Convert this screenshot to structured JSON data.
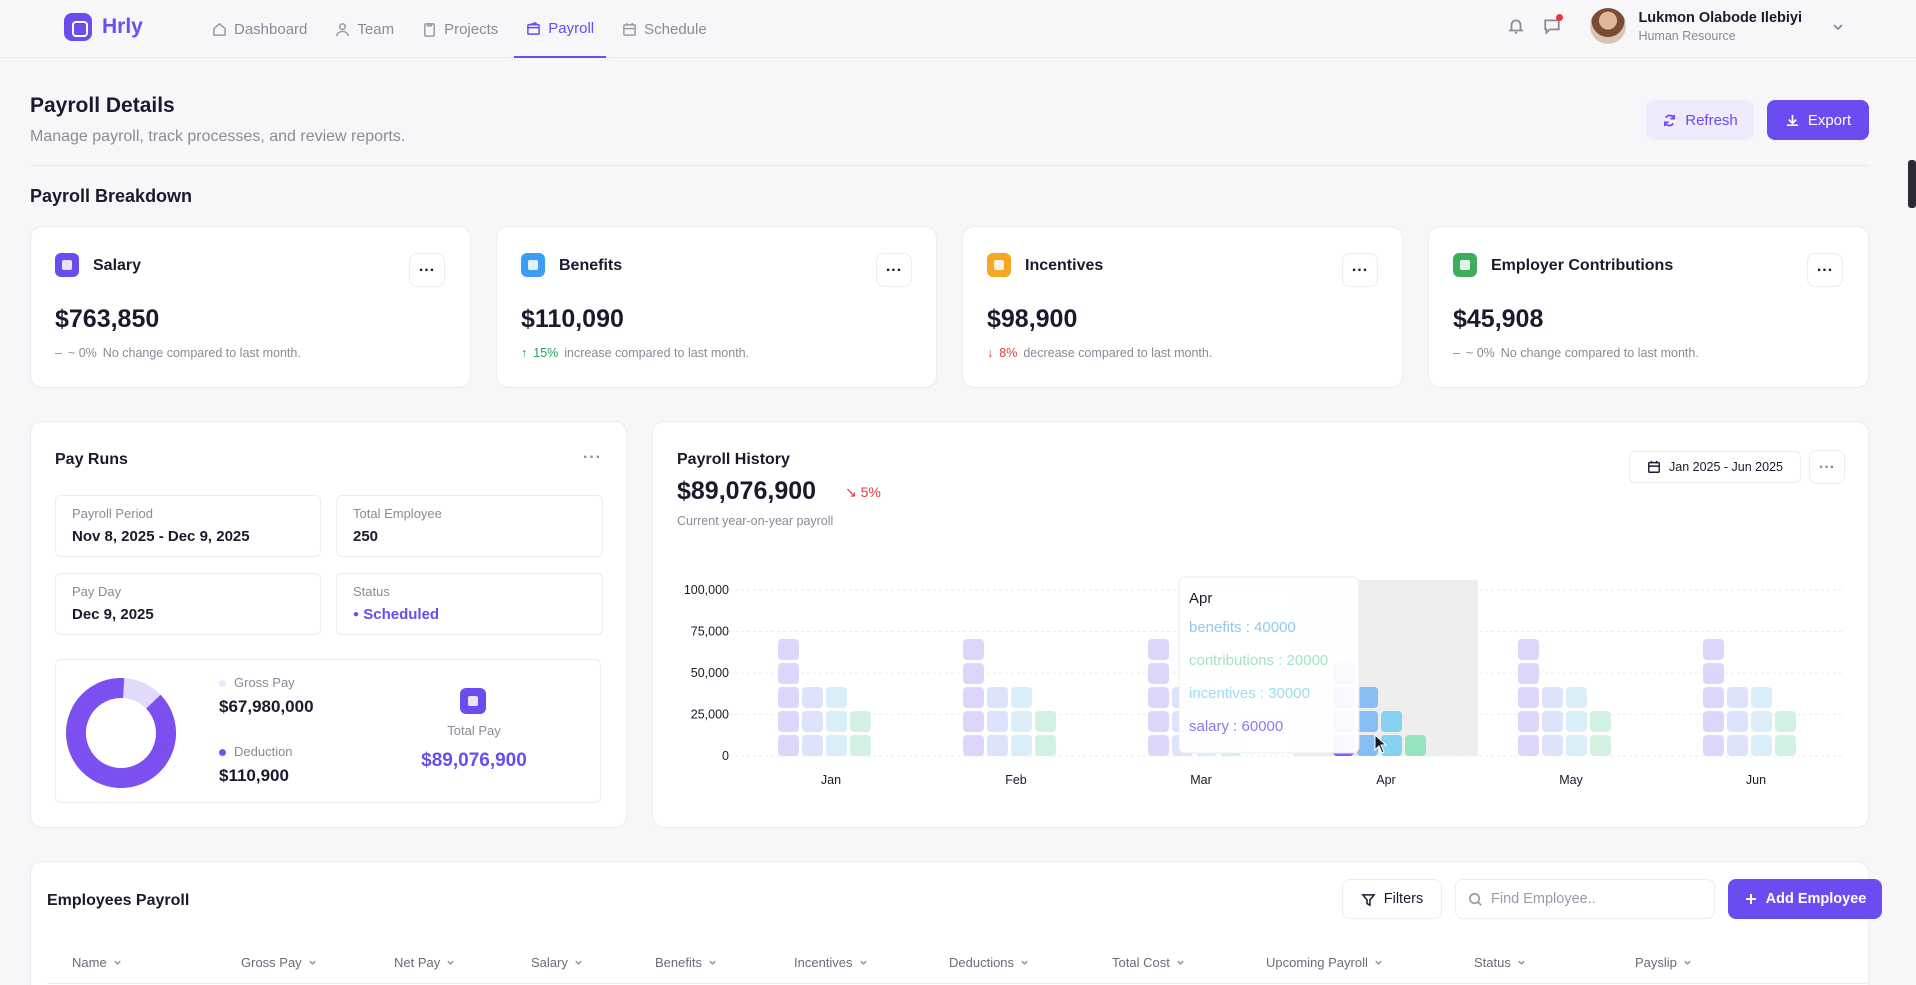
{
  "app": {
    "name": "Hrly"
  },
  "nav": [
    {
      "label": "Dashboard",
      "icon": "home-icon"
    },
    {
      "label": "Team",
      "icon": "users-icon"
    },
    {
      "label": "Projects",
      "icon": "clipboard-icon"
    },
    {
      "label": "Payroll",
      "icon": "wallet-icon",
      "active": true
    },
    {
      "label": "Schedule",
      "icon": "calendar-icon"
    }
  ],
  "user": {
    "name": "Lukmon Olabode Ilebiyi",
    "role": "Human Resource"
  },
  "header": {
    "title": "Payroll Details",
    "subtitle": "Manage payroll, track processes, and review reports.",
    "refresh_label": "Refresh",
    "export_label": "Export"
  },
  "breakdown": {
    "title": "Payroll Breakdown",
    "cards": [
      {
        "name": "Salary",
        "value": "$763,850",
        "change": "~ 0%",
        "change_icon": "–",
        "note": "No change compared to last month.",
        "trend": "flat",
        "color": "#6a4cf0"
      },
      {
        "name": "Benefits",
        "value": "$110,090",
        "change": "15%",
        "change_icon": "↑",
        "note": "increase compared to last month.",
        "trend": "up",
        "color": "#3d9df5"
      },
      {
        "name": "Incentives",
        "value": "$98,900",
        "change": "8%",
        "change_icon": "↓",
        "note": "decrease compared to last month.",
        "trend": "down",
        "color": "#f5a623"
      },
      {
        "name": "Employer Contributions",
        "value": "$45,908",
        "change": "~ 0%",
        "change_icon": "–",
        "note": "No change compared to last month.",
        "trend": "flat",
        "color": "#3fae5a"
      }
    ]
  },
  "pay_runs": {
    "title": "Pay Runs",
    "payroll_period_label": "Payroll Period",
    "payroll_period": "Nov 8, 2025 - Dec 9, 2025",
    "total_employee_label": "Total Employee",
    "total_employee": "250",
    "pay_day_label": "Pay Day",
    "pay_day": "Dec 9, 2025",
    "status_label": "Status",
    "status": "Scheduled",
    "gross_pay_label": "Gross Pay",
    "gross_pay": "$67,980,000",
    "deduction_label": "Deduction",
    "deduction": "$110,900",
    "total_pay_label": "Total Pay",
    "total_pay": "$89,076,900",
    "donut": {
      "gross_fraction": 0.88,
      "gross_color": "#7c4ff0",
      "deduction_color": "#e2dafc"
    }
  },
  "history": {
    "title": "Payroll History",
    "total": "$89,076,900",
    "change": "↘ 5%",
    "subtitle": "Current year-on-year payroll",
    "date_range": "Jan 2025 - Jun 2025",
    "tooltip": {
      "month": "Apr",
      "lines": [
        {
          "text": "benefits : 40000",
          "color": "#8ec9f2"
        },
        {
          "text": "contributions : 20000",
          "color": "#9fe6c2"
        },
        {
          "text": "incentives : 30000",
          "color": "#9adcf2"
        },
        {
          "text": "salary : 60000",
          "color": "#8d78ef"
        }
      ]
    }
  },
  "chart_data": {
    "type": "bar",
    "categories": [
      "Jan",
      "Feb",
      "Mar",
      "Apr",
      "May",
      "Jun"
    ],
    "series": [
      {
        "name": "salary",
        "values": [
          80000,
          80000,
          80000,
          60000,
          80000,
          80000
        ]
      },
      {
        "name": "benefits",
        "values": [
          50000,
          50000,
          50000,
          40000,
          50000,
          50000
        ]
      },
      {
        "name": "incentives",
        "values": [
          40000,
          40000,
          40000,
          30000,
          40000,
          40000
        ]
      },
      {
        "name": "contributions",
        "values": [
          25000,
          25000,
          25000,
          20000,
          25000,
          25000
        ]
      }
    ],
    "yticks": [
      "100,000",
      "75,000",
      "50,000",
      "25,000",
      "0"
    ],
    "ylim": [
      0,
      100000
    ],
    "highlight": "Apr",
    "colors": {
      "salary": "#ddd6fb",
      "benefits": "#dde3fb",
      "incentives": "#d9eef9",
      "contributions": "#d3f1e2"
    },
    "highlight_colors": {
      "salary": "#7c62ec",
      "benefits": "#86bdf4",
      "incentives": "#86d0f0",
      "contributions": "#95e3bd"
    }
  },
  "employees": {
    "title": "Employees Payroll",
    "filters_label": "Filters",
    "search_placeholder": "Find Employee..",
    "add_label": "Add Employee",
    "columns": [
      "Name",
      "Gross Pay",
      "Net Pay",
      "Salary",
      "Benefits",
      "Incentives",
      "Deductions",
      "Total Cost",
      "Upcoming Payroll",
      "Status",
      "Payslip"
    ]
  }
}
